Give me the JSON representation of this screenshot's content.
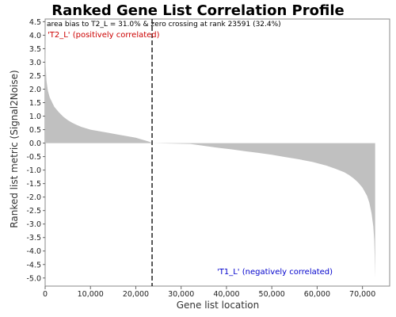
{
  "chart_data": {
    "type": "area",
    "title": "Ranked Gene List Correlation Profile",
    "xlabel": "Gene list location",
    "ylabel": "Ranked list metric (Signal2Noise)",
    "xlim": [
      0,
      76000
    ],
    "ylim": [
      -5.3,
      4.6
    ],
    "x_ticks": [
      0,
      10000,
      20000,
      30000,
      40000,
      50000,
      60000,
      70000
    ],
    "x_tick_labels": [
      "0",
      "10,000",
      "20,000",
      "30,000",
      "40,000",
      "50,000",
      "60,000",
      "70,000"
    ],
    "y_ticks": [
      4.5,
      4.0,
      3.5,
      3.0,
      2.5,
      2.0,
      1.5,
      1.0,
      0.5,
      0.0,
      -0.5,
      -1.0,
      -1.5,
      -2.0,
      -2.5,
      -3.0,
      -3.5,
      -4.0,
      -4.5,
      -5.0
    ],
    "y_tick_labels": [
      "4.5",
      "4.0",
      "3.5",
      "3.0",
      "2.5",
      "2.0",
      "1.5",
      "1.0",
      "0.5",
      "0.0",
      "-0.5",
      "-1.0",
      "-1.5",
      "-2.0",
      "-2.5",
      "-3.0",
      "-3.5",
      "-4.0",
      "-4.5",
      "-5.0"
    ],
    "grid": false,
    "fill_color": "#c0c0c0",
    "zero_crossing_rank": 23591,
    "series": [
      {
        "x": [
          0,
          100,
          300,
          600,
          1000,
          2000,
          3000,
          4000,
          5000,
          6000,
          7000,
          8000,
          9000,
          10000,
          12000,
          14000,
          16000,
          18000,
          20000,
          21000,
          22000,
          23000,
          23591,
          32000,
          35000,
          38000,
          41000,
          44000,
          47000,
          50000,
          53000,
          56000,
          59000,
          62000,
          64000,
          66000,
          67000,
          68000,
          69000,
          70000,
          71000,
          71500,
          72000,
          72400,
          72600,
          72700,
          72800
        ],
        "values": [
          4.3,
          2.9,
          2.3,
          1.95,
          1.7,
          1.35,
          1.15,
          0.98,
          0.85,
          0.75,
          0.67,
          0.6,
          0.55,
          0.5,
          0.44,
          0.38,
          0.32,
          0.26,
          0.2,
          0.15,
          0.1,
          0.05,
          0.0,
          -0.03,
          -0.1,
          -0.17,
          -0.23,
          -0.3,
          -0.36,
          -0.43,
          -0.52,
          -0.6,
          -0.7,
          -0.83,
          -0.95,
          -1.08,
          -1.18,
          -1.3,
          -1.45,
          -1.65,
          -1.95,
          -2.2,
          -2.6,
          -3.1,
          -3.6,
          -4.2,
          -5.0
        ]
      }
    ],
    "annotations": {
      "top": "area bias to T2_L = 31.0% & zero crossing at rank 23591 (32.4%)",
      "positive": "'T2_L' (positively correlated)",
      "negative": "'T1_L' (negatively correlated)"
    },
    "colors": {
      "positive": "#cc0000",
      "negative": "#0000cc",
      "zero_line": "#000000"
    }
  }
}
